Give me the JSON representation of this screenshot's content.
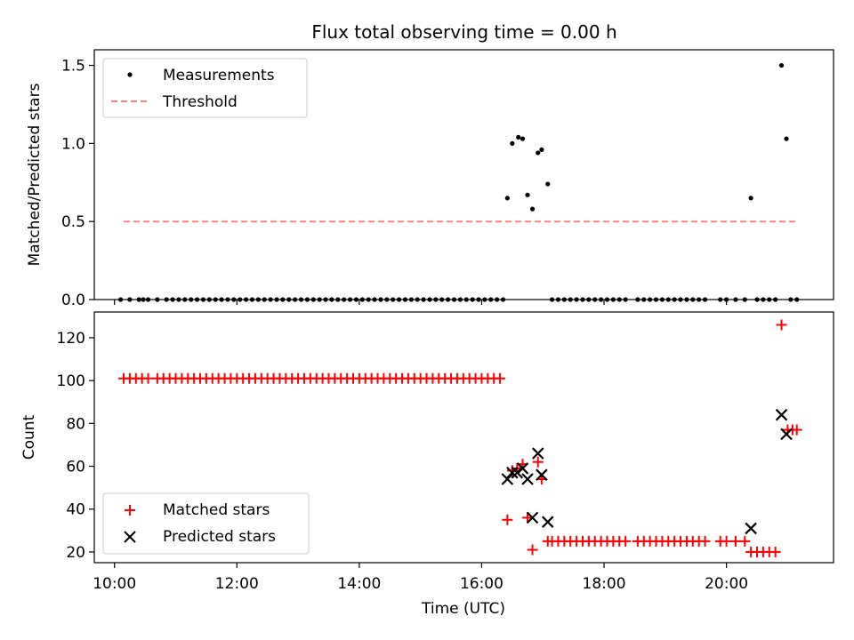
{
  "title": "Flux total observing time = 0.00 h",
  "x_axis": {
    "label": "Time (UTC)",
    "range_hours": [
      9.67,
      21.75
    ],
    "ticks": [
      10,
      12,
      14,
      16,
      18,
      20
    ],
    "tick_labels": [
      "10:00",
      "12:00",
      "14:00",
      "16:00",
      "18:00",
      "20:00"
    ]
  },
  "colors": {
    "measurement": "#000000",
    "threshold": "#ff8080",
    "matched": "#ff0000",
    "predicted": "#000000"
  },
  "chart_data": [
    {
      "type": "scatter",
      "ylabel": "Matched/Predicted stars",
      "xlabel": "",
      "ylim": [
        0,
        1.6
      ],
      "yticks": [
        0,
        0.5,
        1.0,
        1.5
      ],
      "ytick_labels": [
        "0.0",
        "0.5",
        "1.0",
        "1.5"
      ],
      "legend": {
        "placement": "top-left",
        "entries": [
          {
            "label": "Measurements",
            "marker": "dot"
          },
          {
            "label": "Threshold",
            "marker": "dashed-line"
          }
        ]
      },
      "series": [
        {
          "name": "Measurements",
          "x": [
            10.1,
            10.25,
            10.4,
            10.47,
            10.55,
            10.7,
            10.85,
            10.95,
            11.05,
            11.15,
            11.25,
            11.35,
            11.45,
            11.55,
            11.65,
            11.75,
            11.85,
            11.95,
            12.05,
            12.15,
            12.25,
            12.35,
            12.45,
            12.55,
            12.65,
            12.75,
            12.85,
            12.95,
            13.05,
            13.15,
            13.25,
            13.35,
            13.45,
            13.55,
            13.65,
            13.75,
            13.85,
            13.95,
            14.05,
            14.15,
            14.25,
            14.35,
            14.45,
            14.55,
            14.65,
            14.75,
            14.85,
            14.95,
            15.05,
            15.15,
            15.25,
            15.35,
            15.45,
            15.55,
            15.65,
            15.75,
            15.85,
            15.95,
            16.05,
            16.15,
            16.25,
            16.35,
            16.42,
            16.5,
            16.6,
            16.67,
            16.75,
            16.83,
            16.92,
            16.98,
            17.08,
            17.15,
            17.25,
            17.35,
            17.45,
            17.55,
            17.65,
            17.75,
            17.85,
            17.95,
            18.05,
            18.15,
            18.25,
            18.35,
            18.55,
            18.65,
            18.75,
            18.85,
            18.95,
            19.05,
            19.15,
            19.25,
            19.35,
            19.45,
            19.55,
            19.65,
            19.9,
            20.0,
            20.15,
            20.3,
            20.4,
            20.5,
            20.6,
            20.7,
            20.8,
            20.9,
            20.98,
            21.05,
            21.15
          ],
          "y": [
            0,
            0,
            0,
            0,
            0,
            0,
            0,
            0,
            0,
            0,
            0,
            0,
            0,
            0,
            0,
            0,
            0,
            0,
            0,
            0,
            0,
            0,
            0,
            0,
            0,
            0,
            0,
            0,
            0,
            0,
            0,
            0,
            0,
            0,
            0,
            0,
            0,
            0,
            0,
            0,
            0,
            0,
            0,
            0,
            0,
            0,
            0,
            0,
            0,
            0,
            0,
            0,
            0,
            0,
            0,
            0,
            0,
            0,
            0,
            0,
            0,
            0,
            0.65,
            1.0,
            1.04,
            1.03,
            0.67,
            0.58,
            0.94,
            0.96,
            0.74,
            0,
            0,
            0,
            0,
            0,
            0,
            0,
            0,
            0,
            0,
            0,
            0,
            0,
            0,
            0,
            0,
            0,
            0,
            0,
            0,
            0,
            0,
            0,
            0,
            0,
            0,
            0,
            0,
            0,
            0.65,
            0,
            0,
            0,
            0,
            1.5,
            1.03,
            0,
            0
          ]
        },
        {
          "name": "Threshold",
          "x": [
            10.15,
            21.15
          ],
          "y": [
            0.5,
            0.5
          ]
        }
      ]
    },
    {
      "type": "scatter",
      "ylabel": "Count",
      "xlabel": "Time (UTC)",
      "ylim": [
        15,
        132
      ],
      "yticks": [
        20,
        40,
        60,
        80,
        100,
        120
      ],
      "ytick_labels": [
        "20",
        "40",
        "60",
        "80",
        "100",
        "120"
      ],
      "legend": {
        "placement": "bottom-left",
        "entries": [
          {
            "label": "Matched stars",
            "marker": "plus"
          },
          {
            "label": "Predicted stars",
            "marker": "x"
          }
        ]
      },
      "series": [
        {
          "name": "Matched stars",
          "x": [
            10.15,
            10.25,
            10.35,
            10.45,
            10.55,
            10.7,
            10.8,
            10.9,
            11.0,
            11.1,
            11.2,
            11.3,
            11.4,
            11.5,
            11.6,
            11.7,
            11.8,
            11.9,
            12.0,
            12.1,
            12.2,
            12.3,
            12.4,
            12.5,
            12.6,
            12.7,
            12.8,
            12.9,
            13.0,
            13.1,
            13.2,
            13.3,
            13.4,
            13.5,
            13.6,
            13.7,
            13.8,
            13.9,
            14.0,
            14.1,
            14.2,
            14.3,
            14.4,
            14.5,
            14.6,
            14.7,
            14.8,
            14.9,
            15.0,
            15.1,
            15.2,
            15.3,
            15.4,
            15.5,
            15.6,
            15.7,
            15.8,
            15.9,
            16.0,
            16.1,
            16.2,
            16.3,
            16.42,
            16.5,
            16.58,
            16.67,
            16.75,
            16.83,
            16.92,
            16.98,
            17.08,
            17.15,
            17.25,
            17.35,
            17.45,
            17.55,
            17.65,
            17.75,
            17.85,
            17.95,
            18.05,
            18.15,
            18.25,
            18.35,
            18.55,
            18.65,
            18.75,
            18.85,
            18.95,
            19.05,
            19.15,
            19.25,
            19.35,
            19.45,
            19.55,
            19.65,
            19.9,
            20.0,
            20.15,
            20.3,
            20.4,
            20.5,
            20.6,
            20.7,
            20.8,
            20.9,
            21.0,
            21.08,
            21.15
          ],
          "y": [
            101,
            101,
            101,
            101,
            101,
            101,
            101,
            101,
            101,
            101,
            101,
            101,
            101,
            101,
            101,
            101,
            101,
            101,
            101,
            101,
            101,
            101,
            101,
            101,
            101,
            101,
            101,
            101,
            101,
            101,
            101,
            101,
            101,
            101,
            101,
            101,
            101,
            101,
            101,
            101,
            101,
            101,
            101,
            101,
            101,
            101,
            101,
            101,
            101,
            101,
            101,
            101,
            101,
            101,
            101,
            101,
            101,
            101,
            101,
            101,
            101,
            101,
            35,
            58,
            59,
            61,
            36,
            21,
            62,
            54,
            25,
            25,
            25,
            25,
            25,
            25,
            25,
            25,
            25,
            25,
            25,
            25,
            25,
            25,
            25,
            25,
            25,
            25,
            25,
            25,
            25,
            25,
            25,
            25,
            25,
            25,
            25,
            25,
            25,
            25,
            20,
            20,
            20,
            20,
            20,
            126,
            77,
            77,
            77
          ]
        },
        {
          "name": "Predicted stars",
          "x": [
            16.42,
            16.5,
            16.58,
            16.67,
            16.75,
            16.83,
            16.92,
            16.98,
            17.08,
            20.4,
            20.9,
            20.98
          ],
          "y": [
            54,
            57,
            57,
            59,
            54,
            36,
            66,
            56,
            34,
            31,
            84,
            75
          ]
        }
      ]
    }
  ]
}
